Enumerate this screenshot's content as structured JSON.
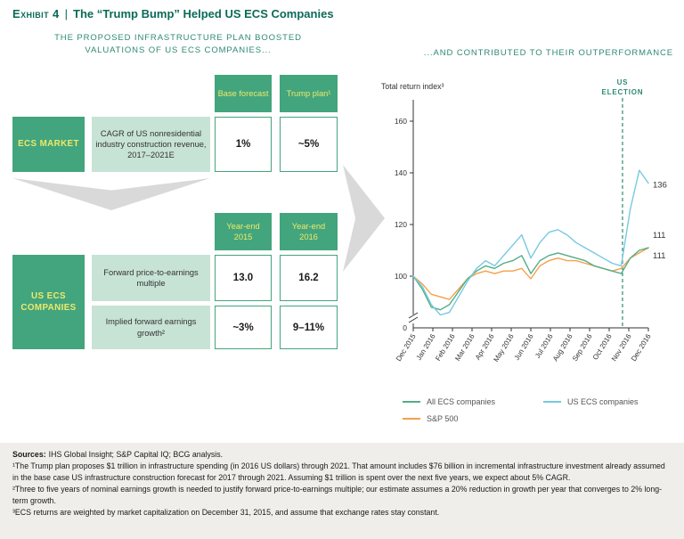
{
  "colors": {
    "title": "#0b6a57",
    "accent": "#2e8a73",
    "box-green": "#43a57d",
    "box-light": "#c7e3d6",
    "label-yellow": "#ede96a",
    "arrow-gray": "#d9d9d9",
    "footer-bg": "#efeeeb"
  },
  "header": {
    "exhibit_label": "Exhibit 4",
    "separator": "|",
    "title": "The “Trump Bump” Helped US ECS Companies"
  },
  "left_panel": {
    "subtitle_line1": "THE PROPOSED INFRASTRUCTURE PLAN BOOSTED",
    "subtitle_line2": "VALUATIONS OF US ECS COMPANIES...",
    "table1": {
      "col_headers": [
        "Base forecast",
        "Trump plan¹"
      ],
      "row_label": "ECS MARKET",
      "row_desc": "CAGR of US nonresidential industry construction revenue, 2017–2021E",
      "values": [
        "1%",
        "~5%"
      ]
    },
    "table2": {
      "col_headers": [
        "Year-end 2015",
        "Year-end 2016"
      ],
      "row_label": "US ECS COMPANIES",
      "rows": [
        {
          "desc": "Forward price-to-earnings multiple",
          "values": [
            "13.0",
            "16.2"
          ]
        },
        {
          "desc": "Implied forward earnings growth²",
          "values": [
            "~3%",
            "9–11%"
          ]
        }
      ]
    }
  },
  "right_panel": {
    "subtitle": "...AND CONTRIBUTED TO THEIR OUTPERFORMANCE"
  },
  "chart_data": {
    "type": "line",
    "y_axis_title": "Total return index³",
    "election_label": "US ELECTION",
    "election_x_fraction": 0.89,
    "x_labels": [
      "Dec 2015",
      "Jan 2016",
      "Feb 2016",
      "Mar 2016",
      "Apr 2016",
      "May 2016",
      "Jun 2016",
      "Jul 2016",
      "Aug 2016",
      "Sep 2016",
      "Oct 2016",
      "Nov 2016",
      "Dec 2016"
    ],
    "yticks": [
      160,
      140,
      120,
      100
    ],
    "ylim_display": [
      0,
      160
    ],
    "axis_break": true,
    "legend_position": "bottom",
    "series": [
      {
        "name": "All ECS companies",
        "color": "#53ad86",
        "z": 1,
        "end_label": "111",
        "end_label_dy": -14,
        "values": [
          100,
          95,
          88,
          87,
          89,
          94,
          99,
          102,
          104,
          103,
          105,
          106,
          108,
          101,
          106,
          108,
          109,
          108,
          107,
          106,
          104,
          103,
          102,
          101,
          107,
          110,
          111
        ]
      },
      {
        "name": "US ECS companies",
        "color": "#76c9e2",
        "z": 2,
        "end_label": "136",
        "end_label_dy": 2,
        "values": [
          100,
          96,
          89,
          85,
          86,
          92,
          98,
          103,
          106,
          104,
          108,
          112,
          116,
          107,
          113,
          117,
          118,
          116,
          113,
          111,
          109,
          107,
          105,
          104,
          126,
          141,
          136
        ]
      },
      {
        "name": "S&P 500",
        "color": "#f5a04a",
        "z": 0,
        "end_label": "111",
        "end_label_dy": 9,
        "values": [
          100,
          97,
          93,
          92,
          91,
          95,
          99,
          101,
          102,
          101,
          102,
          102,
          103,
          99,
          104,
          106,
          107,
          106,
          106,
          105,
          104,
          103,
          102,
          103,
          107,
          109,
          111
        ]
      }
    ]
  },
  "footer": {
    "sources_label": "Sources:",
    "sources_text": "IHS Global Insight; S&P Capital IQ; BCG analysis.",
    "notes": [
      "¹The Trump plan proposes $1 trillion in infrastructure spending (in 2016 US dollars) through 2021. That amount includes $76 billion in incremental infrastructure investment already assumed in the base case US infrastructure construction forecast for 2017 through 2021. Assuming $1 trillion is spent over the next five years, we expect about 5% CAGR.",
      "²Three to five years of nominal earnings growth is needed to justify forward price-to-earnings multiple; our estimate assumes a 20% reduction in growth per year that converges to 2% long-term growth.",
      "³ECS returns are weighted by market capitalization on December 31, 2015, and assume that exchange rates stay constant."
    ]
  }
}
